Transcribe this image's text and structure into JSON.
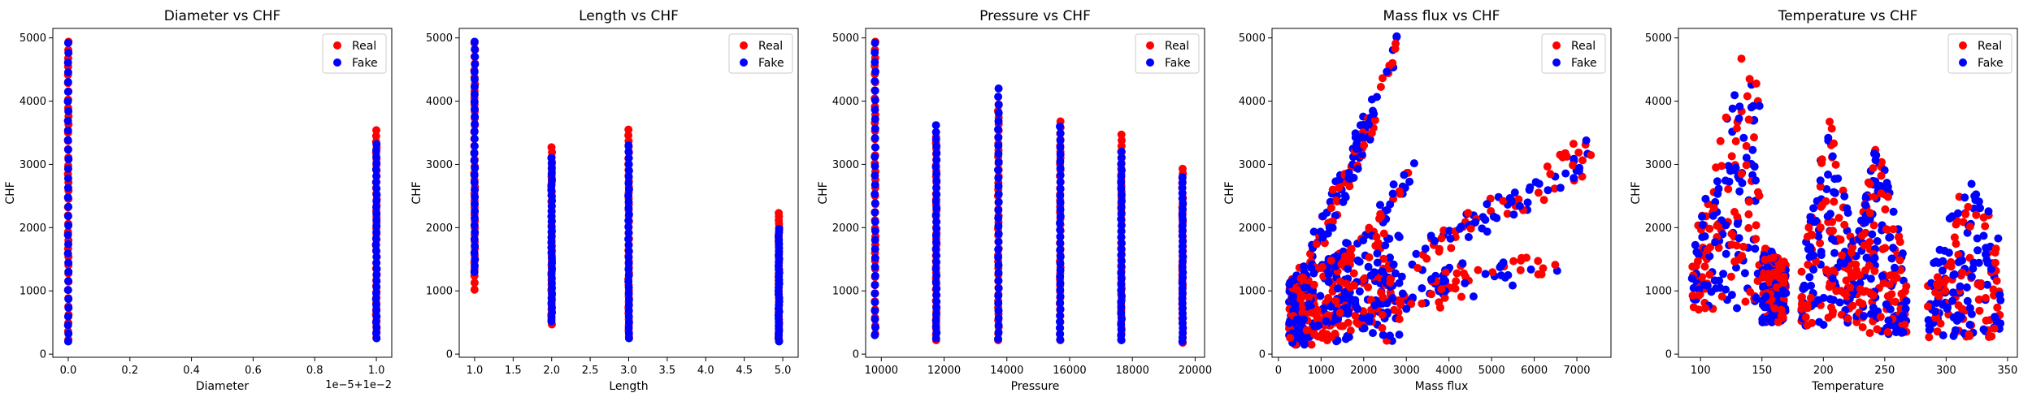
{
  "figure": {
    "background": "#ffffff"
  },
  "colors": {
    "real": "#ff0000",
    "fake": "#0000ff"
  },
  "chart_data": [
    {
      "type": "scatter",
      "title": "Diameter vs CHF",
      "xlabel": "Diameter",
      "ylabel": "CHF",
      "xlim": [
        -0.05,
        1.05
      ],
      "ylim": [
        -50,
        5150
      ],
      "xticks": [
        0,
        0.2,
        0.4,
        0.6,
        0.8,
        1.0
      ],
      "xticklabels": [
        "0.0",
        "0.2",
        "0.4",
        "0.6",
        "0.8",
        "1.0"
      ],
      "yticks": [
        0,
        1000,
        2000,
        3000,
        4000,
        5000
      ],
      "yticklabels": [
        "0",
        "1000",
        "2000",
        "3000",
        "4000",
        "5000"
      ],
      "x_offset_text": "1e−5+1e−2",
      "legend": {
        "position": "upper right",
        "entries": [
          "Real",
          "Fake"
        ]
      },
      "columns": [
        {
          "x": 0,
          "real": [
            230,
            4940
          ],
          "fake": [
            200,
            4920
          ]
        },
        {
          "x": 1.0,
          "real": [
            260,
            3540
          ],
          "fake": [
            250,
            3320
          ]
        }
      ]
    },
    {
      "type": "scatter",
      "title": "Length vs CHF",
      "xlabel": "Length",
      "ylabel": "CHF",
      "xlim": [
        0.8,
        5.2
      ],
      "ylim": [
        -50,
        5150
      ],
      "xticks": [
        1.0,
        1.5,
        2.0,
        2.5,
        3.0,
        3.5,
        4.0,
        4.5,
        5.0
      ],
      "xticklabels": [
        "1.0",
        "1.5",
        "2.0",
        "2.5",
        "3.0",
        "3.5",
        "4.0",
        "4.5",
        "5.0"
      ],
      "yticks": [
        0,
        1000,
        2000,
        3000,
        4000,
        5000
      ],
      "yticklabels": [
        "0",
        "1000",
        "2000",
        "3000",
        "4000",
        "5000"
      ],
      "legend": {
        "position": "upper right",
        "entries": [
          "Real",
          "Fake"
        ]
      },
      "columns": [
        {
          "x": 1.0,
          "real": [
            1020,
            4920
          ],
          "fake": [
            1300,
            4940
          ]
        },
        {
          "x": 2.0,
          "real": [
            470,
            3270
          ],
          "fake": [
            520,
            3100
          ]
        },
        {
          "x": 3.0,
          "real": [
            280,
            3550
          ],
          "fake": [
            250,
            3300
          ]
        },
        {
          "x": 4.95,
          "real": [
            210,
            2230
          ],
          "fake": [
            200,
            1980
          ]
        }
      ]
    },
    {
      "type": "scatter",
      "title": "Pressure vs CHF",
      "xlabel": "Pressure",
      "ylabel": "CHF",
      "xlim": [
        9500,
        20300
      ],
      "ylim": [
        -50,
        5150
      ],
      "xticks": [
        10000,
        12000,
        14000,
        16000,
        18000,
        20000
      ],
      "xticklabels": [
        "10000",
        "12000",
        "14000",
        "16000",
        "18000",
        "20000"
      ],
      "yticks": [
        0,
        1000,
        2000,
        3000,
        4000,
        5000
      ],
      "yticklabels": [
        "0",
        "1000",
        "2000",
        "3000",
        "4000",
        "5000"
      ],
      "legend": {
        "position": "upper right",
        "entries": [
          "Real",
          "Fake"
        ]
      },
      "columns": [
        {
          "x": 9800,
          "real": [
            320,
            4940
          ],
          "fake": [
            300,
            4920
          ]
        },
        {
          "x": 11750,
          "real": [
            220,
            3430
          ],
          "fake": [
            250,
            3620
          ]
        },
        {
          "x": 13730,
          "real": [
            220,
            3950
          ],
          "fake": [
            240,
            4200
          ]
        },
        {
          "x": 15700,
          "real": [
            220,
            3680
          ],
          "fake": [
            230,
            3600
          ]
        },
        {
          "x": 17650,
          "real": [
            230,
            3470
          ],
          "fake": [
            220,
            3200
          ]
        },
        {
          "x": 19600,
          "real": [
            180,
            2930
          ],
          "fake": [
            200,
            2800
          ]
        }
      ]
    },
    {
      "type": "scatter",
      "title": "Mass flux vs CHF",
      "xlabel": "Mass flux",
      "ylabel": "CHF",
      "xlim": [
        -150,
        7800
      ],
      "ylim": [
        -50,
        5150
      ],
      "xticks": [
        0,
        1000,
        2000,
        3000,
        4000,
        5000,
        6000,
        7000
      ],
      "xticklabels": [
        "0",
        "1000",
        "2000",
        "3000",
        "4000",
        "5000",
        "6000",
        "7000"
      ],
      "yticks": [
        0,
        1000,
        2000,
        3000,
        4000,
        5000
      ],
      "yticklabels": [
        "0",
        "1000",
        "2000",
        "3000",
        "4000",
        "5000"
      ],
      "legend": {
        "position": "upper right",
        "entries": [
          "Real",
          "Fake"
        ]
      },
      "bands": [
        {
          "x": [
            300,
            2850
          ],
          "y": [
            900,
            4950
          ]
        },
        {
          "x": [
            300,
            2300
          ],
          "y": [
            700,
            3800
          ]
        },
        {
          "x": [
            300,
            3200
          ],
          "y": [
            500,
            2900
          ]
        },
        {
          "x": [
            500,
            7400
          ],
          "y": [
            300,
            3350
          ]
        },
        {
          "x": [
            400,
            6800
          ],
          "y": [
            250,
            1550
          ]
        },
        {
          "x": [
            1000,
            7200
          ],
          "y": [
            600,
            3000
          ]
        },
        {
          "x": [
            300,
            4500
          ],
          "y": [
            200,
            1300
          ]
        }
      ]
    },
    {
      "type": "scatter",
      "title": "Temperature vs CHF",
      "xlabel": "Temperature",
      "ylabel": "CHF",
      "xlim": [
        82,
        358
      ],
      "ylim": [
        -50,
        5150
      ],
      "xticks": [
        100,
        150,
        200,
        250,
        300,
        350
      ],
      "xticklabels": [
        "100",
        "150",
        "200",
        "250",
        "300",
        "350"
      ],
      "yticks": [
        0,
        1000,
        2000,
        3000,
        4000,
        5000
      ],
      "yticklabels": [
        "0",
        "1000",
        "2000",
        "3000",
        "4000",
        "5000"
      ],
      "legend": {
        "position": "upper right",
        "entries": [
          "Real",
          "Fake"
        ]
      },
      "clusters": [
        {
          "x": [
            93,
            148
          ],
          "peak_x": 137,
          "peak_y": 4950,
          "low_y": 700
        },
        {
          "x": [
            150,
            170
          ],
          "peak_x": 150,
          "peak_y": 1700,
          "low_y": 500
        },
        {
          "x": [
            182,
            228
          ],
          "peak_x": 205,
          "peak_y": 3800,
          "low_y": 450
        },
        {
          "x": [
            228,
            268
          ],
          "peak_x": 245,
          "peak_y": 3550,
          "low_y": 300
        },
        {
          "x": [
            285,
            345
          ],
          "peak_x": 320,
          "peak_y": 3000,
          "low_y": 250
        }
      ]
    }
  ]
}
